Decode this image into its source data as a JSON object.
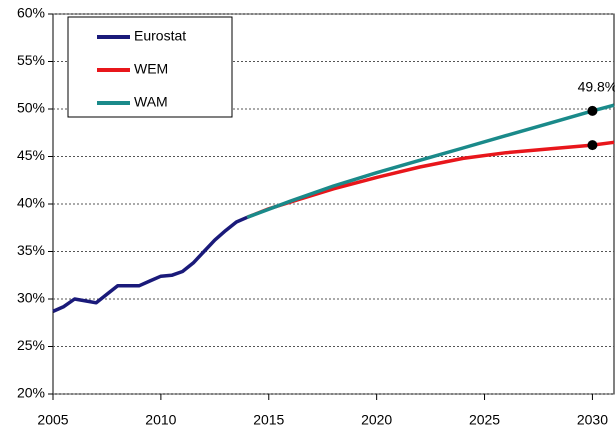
{
  "chart_data": {
    "type": "line",
    "xlim": [
      2005,
      2031
    ],
    "xticks": [
      2005,
      2010,
      2015,
      2020,
      2025,
      2030
    ],
    "ylim": [
      20,
      60
    ],
    "yticks": [
      {
        "value": 20,
        "label": "20%"
      },
      {
        "value": 25,
        "label": "25%"
      },
      {
        "value": 30,
        "label": "30%"
      },
      {
        "value": 35,
        "label": "35%"
      },
      {
        "value": 40,
        "label": "40%"
      },
      {
        "value": 45,
        "label": "45%"
      },
      {
        "value": 50,
        "label": "50%"
      },
      {
        "value": 55,
        "label": "55%"
      },
      {
        "value": 60,
        "label": "60%"
      }
    ],
    "grid": true,
    "legend": "upper left",
    "highlight_x": 2030,
    "series": [
      {
        "name": "Eurostat",
        "color": "#1a1a7a",
        "x": [
          2005,
          2005.5,
          2006,
          2006.5,
          2007,
          2007.5,
          2008,
          2008.5,
          2009,
          2009.5,
          2010,
          2010.5,
          2011,
          2011.5,
          2012,
          2012.5,
          2013,
          2013.5,
          2014
        ],
        "values": [
          28.7,
          29.2,
          30.0,
          29.8,
          29.6,
          30.5,
          31.4,
          31.4,
          31.4,
          31.9,
          32.4,
          32.5,
          32.9,
          33.8,
          35.0,
          36.2,
          37.2,
          38.1,
          38.6
        ]
      },
      {
        "name": "WEM",
        "color": "#e8161b",
        "x": [
          2014,
          2015,
          2016,
          2018,
          2020,
          2022,
          2024,
          2026,
          2028,
          2030,
          2031
        ],
        "values": [
          38.6,
          39.5,
          40.2,
          41.6,
          42.8,
          43.9,
          44.8,
          45.4,
          45.8,
          46.2,
          46.5
        ]
      },
      {
        "name": "WAM",
        "color": "#1a8a8a",
        "x": [
          2014,
          2016,
          2018,
          2020,
          2022,
          2024,
          2026,
          2028,
          2030,
          2031
        ],
        "values": [
          38.6,
          40.3,
          41.9,
          43.3,
          44.6,
          45.9,
          47.2,
          48.5,
          49.8,
          50.4
        ],
        "value_labels": [
          null,
          null,
          null,
          null,
          null,
          null,
          null,
          null,
          "49.8%",
          null
        ]
      }
    ]
  }
}
